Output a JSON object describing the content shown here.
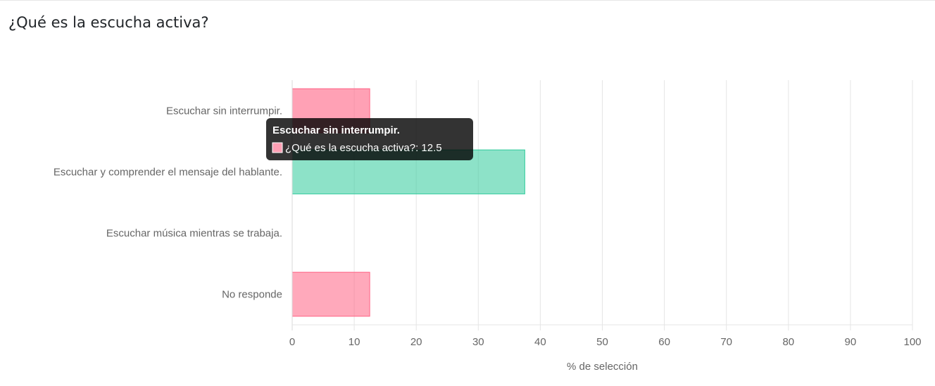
{
  "question": {
    "title": "¿Qué es la escucha activa?"
  },
  "chart_data": {
    "type": "bar",
    "orientation": "horizontal",
    "categories": [
      "Escuchar sin interrumpir.",
      "Escuchar y comprender el mensaje del hablante.",
      "Escuchar música mientras se trabaja.",
      "No responde"
    ],
    "series": [
      {
        "name": "¿Qué es la escucha activa?",
        "values": [
          12.5,
          37.5,
          0,
          12.5
        ],
        "colors": [
          "#ff6384",
          "#2fcb9b",
          "#ff9f40",
          "#ff6384"
        ]
      }
    ],
    "xlabel": "% de selección",
    "ylabel": "",
    "xlim": [
      0,
      100
    ],
    "xticks": [
      0,
      10,
      20,
      30,
      40,
      50,
      60,
      70,
      80,
      90,
      100
    ],
    "grid": true,
    "tooltip": {
      "title": "Escuchar sin interrumpir.",
      "label": "¿Qué es la escucha activa?: 12.5",
      "color": "#ff9fb4"
    }
  }
}
